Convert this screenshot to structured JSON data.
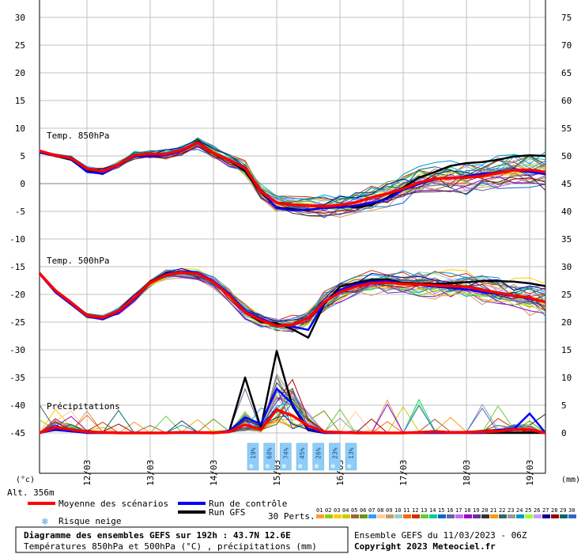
{
  "header": {
    "title": "Diagramme des ensembles GEFS sur 192h : 43.7N 12.6E",
    "subtitle": "Températures 850hPa et 500hPa (°C) , précipitations (mm)",
    "run_info": "Ensemble GEFS du 11/03/2023 - 06Z",
    "copyright": "Copyright 2023 Meteociel.fr"
  },
  "labels": {
    "left_unit": "(°c)",
    "right_unit": "(mm)",
    "altitude": "Alt. 356m",
    "t850": "Temp. 850hPa",
    "t500": "Temp. 500hPa",
    "precip": "Précipitations",
    "perts_label": "30 Perts."
  },
  "legend": {
    "mean": "Moyenne des scénarios",
    "control": "Run de contrôle",
    "gfs": "Run GFS",
    "snow": "Risque neige"
  },
  "colors": {
    "mean": "#ff0000",
    "control": "#0000ff",
    "gfs": "#000000",
    "grid": "#c0c0c0",
    "snow_box": "#8ecdf7"
  },
  "snow_risk": [
    {
      "value": "19%"
    },
    {
      "value": "68%"
    },
    {
      "value": "74%"
    },
    {
      "value": "45%"
    },
    {
      "value": "26%"
    },
    {
      "value": "23%"
    },
    {
      "value": "13%"
    }
  ],
  "perturbations": [
    {
      "id": "01",
      "color": "#ff9933"
    },
    {
      "id": "02",
      "color": "#99cc00"
    },
    {
      "id": "03",
      "color": "#ffcc00"
    },
    {
      "id": "04",
      "color": "#cccc00"
    },
    {
      "id": "05",
      "color": "#996633"
    },
    {
      "id": "06",
      "color": "#669900"
    },
    {
      "id": "07",
      "color": "#3399ff"
    },
    {
      "id": "08",
      "color": "#ffcc99"
    },
    {
      "id": "09",
      "color": "#cc9966"
    },
    {
      "id": "10",
      "color": "#99cccc"
    },
    {
      "id": "11",
      "color": "#ff6600"
    },
    {
      "id": "12",
      "color": "#cc3300"
    },
    {
      "id": "13",
      "color": "#66cc33"
    },
    {
      "id": "14",
      "color": "#00cc99"
    },
    {
      "id": "15",
      "color": "#0066cc"
    },
    {
      "id": "16",
      "color": "#666699"
    },
    {
      "id": "17",
      "color": "#cc66ff"
    },
    {
      "id": "18",
      "color": "#9900cc"
    },
    {
      "id": "19",
      "color": "#663399"
    },
    {
      "id": "20",
      "color": "#333333"
    },
    {
      "id": "21",
      "color": "#ff9900"
    },
    {
      "id": "22",
      "color": "#336666"
    },
    {
      "id": "23",
      "color": "#999999"
    },
    {
      "id": "24",
      "color": "#0099cc"
    },
    {
      "id": "25",
      "color": "#99ff33"
    },
    {
      "id": "26",
      "color": "#cc99ff"
    },
    {
      "id": "27",
      "color": "#000099"
    },
    {
      "id": "28",
      "color": "#990000"
    },
    {
      "id": "29",
      "color": "#006666"
    },
    {
      "id": "30",
      "color": "#3366cc"
    }
  ],
  "chart_data": {
    "type": "line",
    "x_tick_labels": [
      "12/03",
      "13/03",
      "14/03",
      "15/03",
      "16/03",
      "17/03",
      "18/03",
      "19/03"
    ],
    "x_range_hours": [
      0,
      192
    ],
    "left_axis_ticks": [
      30,
      25,
      20,
      15,
      10,
      5,
      0,
      -5,
      -10,
      -15,
      -20,
      -25,
      -30,
      -35,
      -40,
      -45
    ],
    "right_axis_ticks": [
      75,
      70,
      65,
      60,
      55,
      50,
      45,
      40,
      35,
      30,
      25,
      20,
      15,
      10,
      5,
      0
    ],
    "ylim": [
      -45,
      30
    ],
    "right_ylim": [
      0,
      75
    ],
    "x_hours": [
      0,
      6,
      12,
      18,
      24,
      30,
      36,
      42,
      48,
      54,
      60,
      66,
      72,
      78,
      84,
      90,
      96,
      102,
      108,
      114,
      120,
      126,
      132,
      138,
      144,
      150,
      156,
      162,
      168,
      174,
      180,
      186,
      192
    ],
    "series": [
      {
        "name": "Moyenne des scénarios",
        "panel": "t850",
        "values": [
          5.9,
          5.1,
          4.6,
          2.7,
          2.2,
          3.5,
          5.1,
          5.4,
          5.3,
          6.1,
          7.4,
          5.5,
          4.3,
          2.8,
          -1.4,
          -3.5,
          -3.8,
          -4.0,
          -4.1,
          -3.9,
          -3.4,
          -2.5,
          -1.8,
          -0.9,
          0.2,
          0.9,
          1.0,
          1.1,
          1.4,
          1.9,
          2.4,
          2.5,
          2.1
        ]
      },
      {
        "name": "Run de contrôle",
        "panel": "t850",
        "values": [
          5.6,
          5.1,
          4.4,
          2.1,
          1.8,
          3.4,
          4.9,
          5.0,
          5.1,
          5.9,
          7.3,
          5.6,
          4.2,
          2.6,
          -1.3,
          -4.4,
          -4.8,
          -4.7,
          -4.4,
          -4.3,
          -4.0,
          -3.5,
          -2.8,
          -1.1,
          -0.1,
          0.8,
          1.0,
          1.3,
          1.8,
          2.0,
          2.4,
          2.1,
          1.7
        ]
      },
      {
        "name": "Run GFS",
        "panel": "t850",
        "values": [
          5.6,
          5.0,
          4.3,
          2.2,
          1.9,
          3.5,
          5.2,
          5.3,
          5.1,
          6.0,
          7.6,
          5.6,
          4.2,
          2.2,
          -1.6,
          -4.3,
          -4.6,
          -4.8,
          -4.3,
          -4.0,
          -4.3,
          -3.9,
          -2.5,
          -0.7,
          1.1,
          2.1,
          3.2,
          3.7,
          3.9,
          4.3,
          4.9,
          5.1,
          5.0
        ]
      },
      {
        "name": "Moyenne des scénarios",
        "panel": "t500",
        "values": [
          -16.2,
          -19.3,
          -21.5,
          -23.8,
          -24.2,
          -23.0,
          -20.6,
          -17.9,
          -16.5,
          -16.0,
          -16.3,
          -17.8,
          -20.2,
          -23.2,
          -24.6,
          -25.7,
          -25.5,
          -24.2,
          -21.4,
          -19.6,
          -18.6,
          -18.0,
          -17.9,
          -18.1,
          -18.2,
          -18.4,
          -18.5,
          -18.6,
          -19.2,
          -19.7,
          -20.2,
          -20.6,
          -21.4
        ]
      },
      {
        "name": "Run de contrôle",
        "panel": "t500",
        "values": [
          -16.3,
          -19.6,
          -21.8,
          -24.0,
          -24.5,
          -23.3,
          -20.9,
          -18.0,
          -16.3,
          -15.8,
          -16.1,
          -17.6,
          -19.9,
          -23.0,
          -24.3,
          -25.6,
          -25.8,
          -26.4,
          -21.6,
          -19.2,
          -18.2,
          -17.7,
          -17.6,
          -18.0,
          -18.3,
          -18.6,
          -18.8,
          -19.1,
          -19.6,
          -19.9,
          -20.3,
          -20.8,
          -21.3
        ]
      },
      {
        "name": "Run GFS",
        "panel": "t500",
        "values": [
          -16.1,
          -19.4,
          -21.6,
          -23.9,
          -24.3,
          -23.1,
          -20.7,
          -17.8,
          -16.2,
          -15.9,
          -16.3,
          -17.7,
          -20.0,
          -23.2,
          -24.9,
          -25.2,
          -26.3,
          -27.8,
          -21.8,
          -18.6,
          -17.9,
          -17.4,
          -17.3,
          -17.9,
          -18.0,
          -18.1,
          -18.0,
          -17.8,
          -17.6,
          -17.6,
          -17.7,
          -18.0,
          -18.5
        ]
      },
      {
        "name": "Moyenne des scénarios",
        "panel": "precip",
        "values": [
          0,
          1.0,
          0.6,
          0.2,
          0.1,
          0.0,
          0.0,
          0.0,
          0.0,
          0.1,
          0.1,
          0.0,
          0.2,
          1.5,
          0.6,
          4.2,
          3.1,
          1.3,
          0.2,
          0.1,
          0.0,
          0.0,
          0.0,
          0.0,
          0.1,
          0.2,
          0.1,
          0.1,
          0.2,
          0.3,
          0.6,
          0.6,
          0.0
        ]
      },
      {
        "name": "Run de contrôle",
        "panel": "precip",
        "values": [
          0,
          0.6,
          0.3,
          0.0,
          0.0,
          0.0,
          0.0,
          0.0,
          0.0,
          0.0,
          0.0,
          0.0,
          0.4,
          2.8,
          1.6,
          8.0,
          5.2,
          0.7,
          0.0,
          0.0,
          0.0,
          0.0,
          0.0,
          0.0,
          0.0,
          0.0,
          0.0,
          0.0,
          0.0,
          0.5,
          0.7,
          3.5,
          0.0
        ]
      },
      {
        "name": "Run GFS",
        "panel": "precip",
        "values": [
          0,
          0.7,
          0.4,
          0.0,
          0.0,
          0.0,
          0.0,
          0.0,
          0.0,
          0.0,
          0.0,
          0.0,
          0.3,
          10.0,
          0.9,
          14.8,
          4.8,
          0.5,
          0.0,
          0.0,
          0.0,
          0.0,
          0.0,
          0.0,
          0.0,
          0.0,
          0.0,
          0.0,
          0.0,
          0.0,
          0.0,
          0.0,
          0.0
        ]
      }
    ],
    "title": "Diagramme des ensembles GEFS sur 192h : 43.7N 12.6E",
    "grid": true,
    "legend_position": "bottom"
  }
}
